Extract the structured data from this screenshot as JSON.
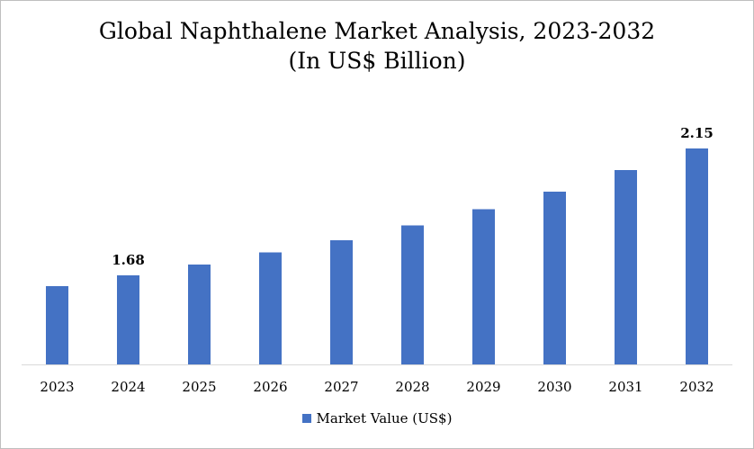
{
  "chart_data": {
    "type": "bar",
    "title": "Global Naphthalene Market Analysis, 2023-2032",
    "subtitle": "(In US$ Billion)",
    "categories": [
      "2023",
      "2024",
      "2025",
      "2026",
      "2027",
      "2028",
      "2029",
      "2030",
      "2031",
      "2032"
    ],
    "series": [
      {
        "name": "Market Value (US$)",
        "values": [
          1.64,
          1.68,
          1.72,
          1.765,
          1.81,
          1.865,
          1.925,
          1.99,
          2.07,
          2.15
        ],
        "color": "#4472C4"
      }
    ],
    "data_labels": [
      {
        "category": "2024",
        "text": "1.68"
      },
      {
        "category": "2032",
        "text": "2.15"
      }
    ],
    "xlabel": "",
    "ylabel": "",
    "ylim": [
      1.35,
      2.2
    ],
    "grid": false,
    "legend_position": "bottom"
  }
}
